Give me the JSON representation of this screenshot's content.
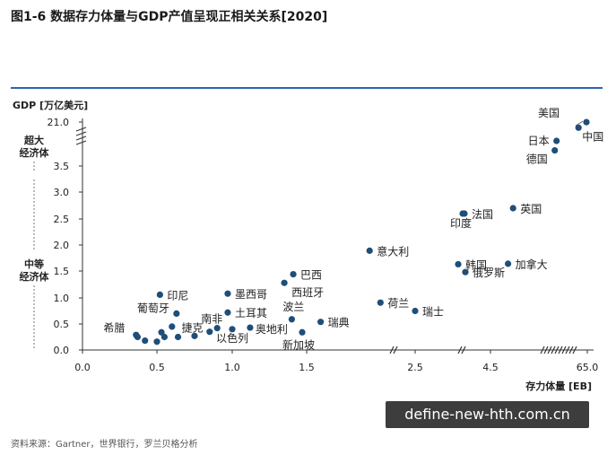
{
  "title": "图1-6 数据存力体量与GDP产值呈现正相关关系[2020]",
  "source": "资料来源：Gartner，世界银行，罗兰贝格分析",
  "watermark": "define-new-hth.com.cn",
  "colors": {
    "accent_line": "#2c63b6",
    "dot": "#1f4e79",
    "axis": "#333333"
  },
  "chart_data": {
    "type": "scatter",
    "title": "图1-6 数据存力体量与GDP产值呈现正相关关系[2020]",
    "xlabel": "存力体量 [EB]",
    "ylabel": "GDP [万亿美元]",
    "x_ticks": [
      "0.0",
      "0.5",
      "1.0",
      "1.5",
      "2.5",
      "4.5",
      "65.0"
    ],
    "y_ticks": [
      "0.0",
      "0.5",
      "1.0",
      "1.5",
      "2.0",
      "2.5",
      "3.0",
      "3.5",
      "21.0"
    ],
    "y_tiers": [
      {
        "name": "超大\n经济体",
        "from": 3.75,
        "to": 5.0
      },
      {
        "name": "中等\n经济体",
        "from": 0.0,
        "to": 3.6
      }
    ],
    "axis_breaks": "x between 2.0 and 2.5, between 3.5 and 4.0, and between 5.0 and 65.0; y between 3.5 and 21.0",
    "grid": false,
    "points": [
      {
        "name": "美国",
        "x": 64.0,
        "y": 20.9,
        "show_label": true
      },
      {
        "name": "中国",
        "x": 55.0,
        "y": 14.7,
        "show_label": true
      },
      {
        "name": "日本",
        "x": 30.0,
        "y": 5.0,
        "show_label": true
      },
      {
        "name": "德国",
        "x": 28.0,
        "y": 3.8,
        "show_label": true
      },
      {
        "name": "英国",
        "x": 4.95,
        "y": 2.7,
        "show_label": true
      },
      {
        "name": "法国",
        "x": 3.9,
        "y": 2.6,
        "show_label": true
      },
      {
        "name": "印度",
        "x": 3.8,
        "y": 2.6,
        "show_label": true
      },
      {
        "name": "加拿大",
        "x": 4.85,
        "y": 1.64,
        "show_label": true
      },
      {
        "name": "俄罗斯",
        "x": 3.95,
        "y": 1.48,
        "show_label": true
      },
      {
        "name": "韩国",
        "x": 3.55,
        "y": 1.63,
        "show_label": true
      },
      {
        "name": "意大利",
        "x": 1.95,
        "y": 1.89,
        "show_label": true
      },
      {
        "name": "荷兰",
        "x": 2.05,
        "y": 0.91,
        "show_label": true
      },
      {
        "name": "瑞士",
        "x": 2.5,
        "y": 0.75,
        "show_label": true
      },
      {
        "name": "巴西",
        "x": 1.41,
        "y": 1.44,
        "show_label": true
      },
      {
        "name": "西班牙",
        "x": 1.35,
        "y": 1.28,
        "show_label": true
      },
      {
        "name": "墨西哥",
        "x": 0.97,
        "y": 1.08,
        "show_label": true
      },
      {
        "name": "印尼",
        "x": 0.52,
        "y": 1.06,
        "show_label": true
      },
      {
        "name": "波兰",
        "x": 1.4,
        "y": 0.59,
        "show_label": true
      },
      {
        "name": "瑞典",
        "x": 1.6,
        "y": 0.54,
        "show_label": true
      },
      {
        "name": "土耳其",
        "x": 0.97,
        "y": 0.72,
        "show_label": true
      },
      {
        "name": "葡萄牙",
        "x": 0.63,
        "y": 0.7,
        "show_label": true
      },
      {
        "name": "南非",
        "x": 0.9,
        "y": 0.42,
        "show_label": true
      },
      {
        "name": "奥地利",
        "x": 1.12,
        "y": 0.43,
        "show_label": true
      },
      {
        "name": "新加坡",
        "x": 1.47,
        "y": 0.34,
        "show_label": true
      },
      {
        "name": "以色列",
        "x": 1.0,
        "y": 0.4,
        "show_label": true
      },
      {
        "name": "希腊",
        "x": 0.37,
        "y": 0.25,
        "show_label": true
      },
      {
        "name": "捷克",
        "x": 0.64,
        "y": 0.25,
        "show_label": true
      },
      {
        "name": "",
        "x": 0.36,
        "y": 0.29,
        "show_label": false
      },
      {
        "name": "",
        "x": 0.42,
        "y": 0.18,
        "show_label": false
      },
      {
        "name": "",
        "x": 0.5,
        "y": 0.16,
        "show_label": false
      },
      {
        "name": "",
        "x": 0.53,
        "y": 0.34,
        "show_label": false
      },
      {
        "name": "",
        "x": 0.55,
        "y": 0.25,
        "show_label": false
      },
      {
        "name": "",
        "x": 0.6,
        "y": 0.45,
        "show_label": false
      },
      {
        "name": "",
        "x": 0.75,
        "y": 0.27,
        "show_label": false
      },
      {
        "name": "",
        "x": 0.85,
        "y": 0.35,
        "show_label": false
      }
    ]
  }
}
